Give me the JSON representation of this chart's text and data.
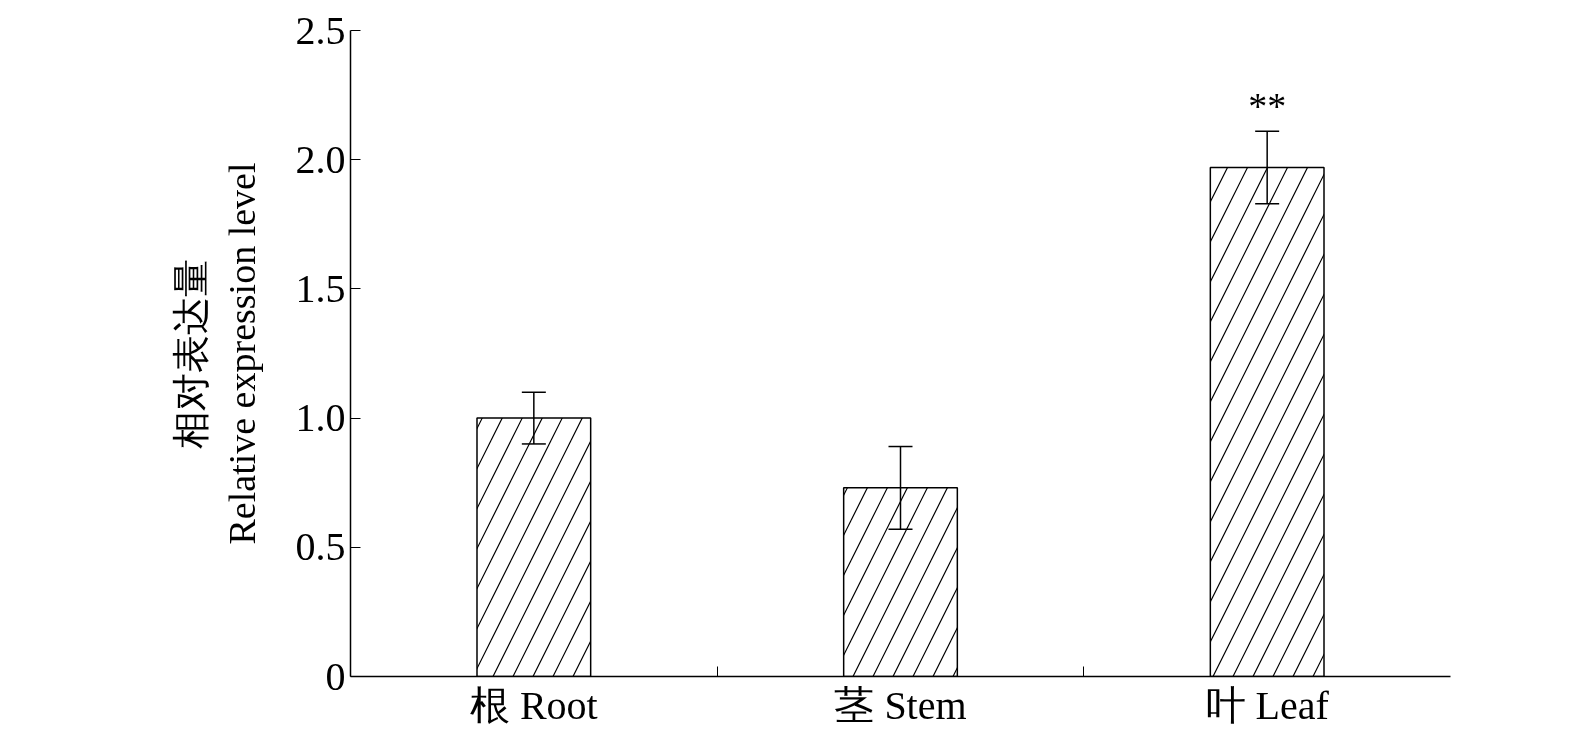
{
  "chart_data": {
    "type": "bar",
    "ylabel": "相对表达量\nRelative expression level",
    "categories": [
      "根 Root",
      "茎 Stem",
      "叶 Leaf"
    ],
    "values": [
      1.0,
      0.73,
      1.97
    ],
    "errors": [
      0.1,
      0.16,
      0.14
    ],
    "color": "#ffffff",
    "ylim": [
      0,
      2.5
    ],
    "yticks": [
      0,
      0.5,
      {
        "value": 1.0,
        "label": "1.0"
      },
      1.5,
      {
        "value": 2.0,
        "label": "2.0"
      },
      2.5
    ],
    "annotations": [
      {
        "text": "**",
        "x": "叶 Leaf",
        "y": 2.11
      }
    ]
  }
}
